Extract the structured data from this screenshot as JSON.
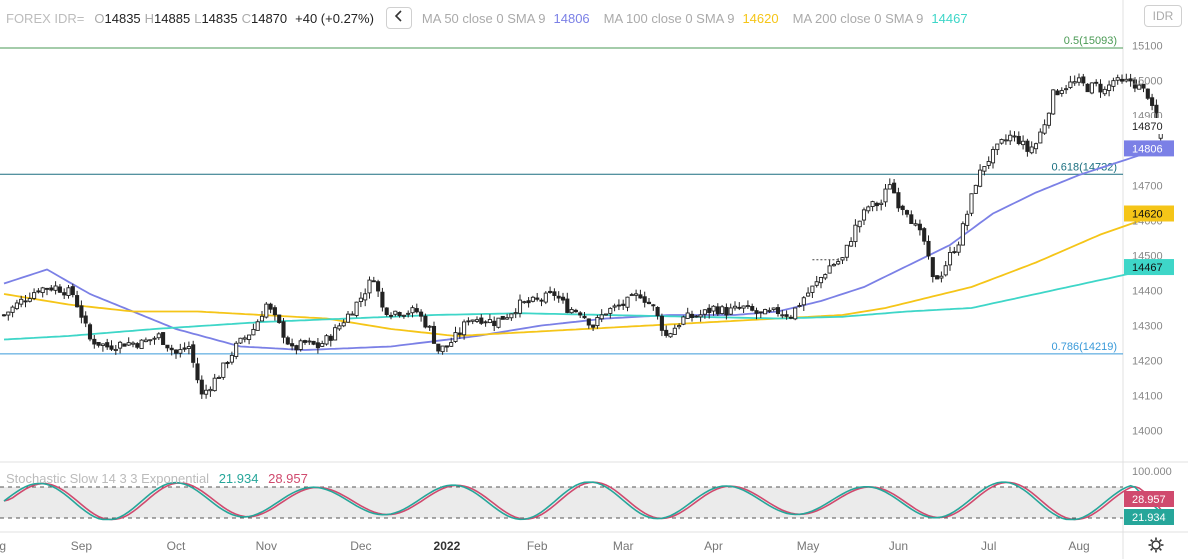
{
  "header": {
    "symbol": "FOREX IDR=",
    "ohlc": [
      {
        "key": "O",
        "value": "14835"
      },
      {
        "key": "H",
        "value": "14885"
      },
      {
        "key": "L",
        "value": "14835"
      },
      {
        "key": "C",
        "value": "14870"
      }
    ],
    "change": "+40 (+0.27%)",
    "collapse_icon": "chevron-left-icon",
    "moving_averages": [
      {
        "label": "MA 50 close 0 SMA 9",
        "value": "14806",
        "color": "#7b80e6"
      },
      {
        "label": "MA 100 close 0 SMA 9",
        "value": "14620",
        "color": "#f5c518"
      },
      {
        "label": "MA 200 close 0 SMA 9",
        "value": "14467",
        "color": "#3ed6c8"
      }
    ],
    "currency_button": "IDR"
  },
  "colors": {
    "candle": "#222222",
    "ma50": "#7b80e6",
    "ma100": "#f5c518",
    "ma200": "#3ed6c8",
    "fib_05": "#4a9a54",
    "fib_0618": "#1b6f80",
    "fib_0786": "#3a9ad9",
    "stoch_k": "#26a69a",
    "stoch_d": "#d04a6e",
    "stoch_band": "#ebebeb"
  },
  "stochastic": {
    "label": "Stochastic Slow 14 3 3 Exponential",
    "k_value": "21.934",
    "d_value": "28.957",
    "axis_top": "100.000"
  },
  "chart_data": {
    "type": "candlestick",
    "title": "FOREX IDR=",
    "price_axis": {
      "ticks": [
        "15100",
        "15000",
        "14900",
        "14800",
        "14700",
        "14600",
        "14500",
        "14400",
        "14300",
        "14200",
        "14100",
        "14000"
      ],
      "ylim": [
        13960,
        15200
      ]
    },
    "time_axis": {
      "labels": [
        "Aug",
        "Sep",
        "Oct",
        "Nov",
        "Dec",
        "2022",
        "Feb",
        "Mar",
        "Apr",
        "May",
        "Jun",
        "Jul",
        "Aug"
      ],
      "label_index": [
        -2,
        18,
        40,
        61,
        83,
        103,
        124,
        144,
        165,
        187,
        208,
        229,
        250
      ]
    },
    "fibonacci": [
      {
        "label": "0.5(15093)",
        "level": 15093
      },
      {
        "label": "0.618(14732)",
        "level": 14732
      },
      {
        "label": "0.786(14219)",
        "level": 14219
      }
    ],
    "price_labels": [
      {
        "text": "14870",
        "value": 14870,
        "style": "last"
      },
      {
        "text": "14806",
        "value": 14806,
        "series": "ma50"
      },
      {
        "text": "14620",
        "value": 14620,
        "series": "ma100"
      },
      {
        "text": "14467",
        "value": 14467,
        "series": "ma200"
      }
    ],
    "close_anchors": [
      [
        0,
        14330
      ],
      [
        4,
        14370
      ],
      [
        8,
        14405
      ],
      [
        12,
        14410
      ],
      [
        16,
        14390
      ],
      [
        18,
        14330
      ],
      [
        20,
        14260
      ],
      [
        24,
        14240
      ],
      [
        28,
        14250
      ],
      [
        32,
        14250
      ],
      [
        36,
        14270
      ],
      [
        40,
        14220
      ],
      [
        43,
        14240
      ],
      [
        46,
        14100
      ],
      [
        50,
        14160
      ],
      [
        54,
        14240
      ],
      [
        58,
        14290
      ],
      [
        61,
        14360
      ],
      [
        64,
        14300
      ],
      [
        67,
        14230
      ],
      [
        70,
        14250
      ],
      [
        73,
        14240
      ],
      [
        76,
        14270
      ],
      [
        80,
        14330
      ],
      [
        83,
        14380
      ],
      [
        86,
        14440
      ],
      [
        88,
        14350
      ],
      [
        90,
        14340
      ],
      [
        93,
        14340
      ],
      [
        96,
        14340
      ],
      [
        99,
        14290
      ],
      [
        101,
        14230
      ],
      [
        103,
        14240
      ],
      [
        106,
        14280
      ],
      [
        108,
        14320
      ],
      [
        111,
        14320
      ],
      [
        114,
        14310
      ],
      [
        117,
        14330
      ],
      [
        120,
        14360
      ],
      [
        124,
        14370
      ],
      [
        128,
        14390
      ],
      [
        131,
        14350
      ],
      [
        134,
        14340
      ],
      [
        137,
        14300
      ],
      [
        140,
        14340
      ],
      [
        144,
        14360
      ],
      [
        148,
        14390
      ],
      [
        151,
        14350
      ],
      [
        154,
        14270
      ],
      [
        158,
        14320
      ],
      [
        162,
        14330
      ],
      [
        165,
        14350
      ],
      [
        168,
        14340
      ],
      [
        172,
        14350
      ],
      [
        176,
        14330
      ],
      [
        180,
        14340
      ],
      [
        183,
        14330
      ],
      [
        186,
        14380
      ],
      [
        189,
        14420
      ],
      [
        192,
        14470
      ],
      [
        195,
        14490
      ],
      [
        198,
        14580
      ],
      [
        201,
        14640
      ],
      [
        204,
        14650
      ],
      [
        206,
        14710
      ],
      [
        208,
        14650
      ],
      [
        210,
        14630
      ],
      [
        212,
        14580
      ],
      [
        214,
        14540
      ],
      [
        216,
        14430
      ],
      [
        218,
        14450
      ],
      [
        220,
        14500
      ],
      [
        222,
        14540
      ],
      [
        224,
        14620
      ],
      [
        226,
        14710
      ],
      [
        228,
        14760
      ],
      [
        230,
        14790
      ],
      [
        232,
        14820
      ],
      [
        234,
        14840
      ],
      [
        236,
        14830
      ],
      [
        238,
        14800
      ],
      [
        240,
        14820
      ],
      [
        242,
        14880
      ],
      [
        244,
        14960
      ],
      [
        246,
        14980
      ],
      [
        248,
        14990
      ],
      [
        250,
        14995
      ],
      [
        252,
        14980
      ],
      [
        254,
        14985
      ],
      [
        256,
        14970
      ],
      [
        258,
        15000
      ],
      [
        260,
        14990
      ],
      [
        262,
        15000
      ],
      [
        264,
        14980
      ],
      [
        266,
        14960
      ],
      [
        268,
        14870
      ],
      [
        269,
        14880
      ]
    ],
    "series": [
      {
        "name": "MA 50 close 0 SMA 9",
        "values": [
          [
            0,
            14420
          ],
          [
            10,
            14460
          ],
          [
            20,
            14390
          ],
          [
            30,
            14340
          ],
          [
            40,
            14290
          ],
          [
            55,
            14240
          ],
          [
            70,
            14230
          ],
          [
            90,
            14240
          ],
          [
            110,
            14270
          ],
          [
            125,
            14300
          ],
          [
            140,
            14320
          ],
          [
            155,
            14330
          ],
          [
            170,
            14330
          ],
          [
            180,
            14340
          ],
          [
            190,
            14370
          ],
          [
            200,
            14410
          ],
          [
            210,
            14470
          ],
          [
            220,
            14530
          ],
          [
            230,
            14620
          ],
          [
            240,
            14680
          ],
          [
            250,
            14730
          ],
          [
            260,
            14770
          ],
          [
            269,
            14806
          ]
        ]
      },
      {
        "name": "MA 100 close 0 SMA 9",
        "values": [
          [
            0,
            14390
          ],
          [
            15,
            14360
          ],
          [
            30,
            14340
          ],
          [
            45,
            14340
          ],
          [
            60,
            14330
          ],
          [
            75,
            14320
          ],
          [
            90,
            14290
          ],
          [
            105,
            14270
          ],
          [
            120,
            14280
          ],
          [
            135,
            14290
          ],
          [
            150,
            14300
          ],
          [
            165,
            14310
          ],
          [
            180,
            14320
          ],
          [
            195,
            14330
          ],
          [
            205,
            14350
          ],
          [
            215,
            14380
          ],
          [
            225,
            14410
          ],
          [
            240,
            14480
          ],
          [
            255,
            14560
          ],
          [
            269,
            14620
          ]
        ]
      },
      {
        "name": "MA 200 close 0 SMA 9",
        "values": [
          [
            0,
            14260
          ],
          [
            15,
            14270
          ],
          [
            35,
            14290
          ],
          [
            60,
            14310
          ],
          [
            80,
            14320
          ],
          [
            100,
            14330
          ],
          [
            120,
            14335
          ],
          [
            140,
            14330
          ],
          [
            160,
            14325
          ],
          [
            180,
            14320
          ],
          [
            195,
            14325
          ],
          [
            210,
            14340
          ],
          [
            225,
            14350
          ],
          [
            240,
            14390
          ],
          [
            255,
            14430
          ],
          [
            269,
            14467
          ]
        ]
      }
    ],
    "stochastic_series": [
      {
        "name": "K",
        "value": 21.934
      },
      {
        "name": "D",
        "value": 28.957
      }
    ]
  }
}
